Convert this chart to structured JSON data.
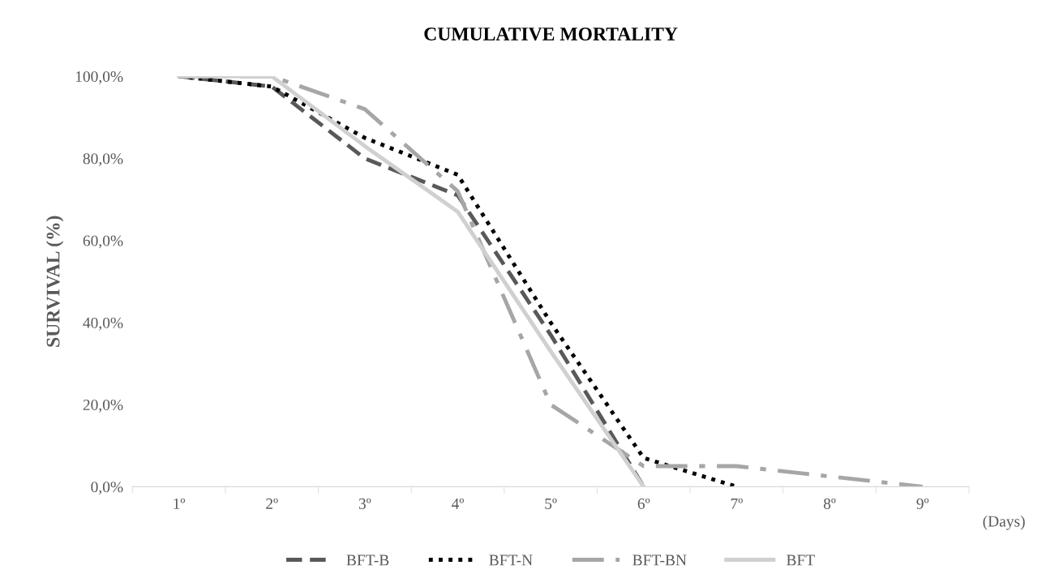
{
  "chart_data": {
    "type": "line",
    "title": "CUMULATIVE MORTALITY",
    "ylabel": "SURVIVAL (%)",
    "xlabel": "(Days)",
    "categories": [
      "1º",
      "2º",
      "3º",
      "4º",
      "5º",
      "6º",
      "7º",
      "8º",
      "9º"
    ],
    "series": [
      {
        "name": "BFT-B",
        "color": "#595959",
        "line_style": "dashed",
        "values": [
          100,
          97.5,
          80,
          71,
          37,
          0,
          null,
          null,
          null
        ]
      },
      {
        "name": "BFT-N",
        "color": "#000000",
        "line_style": "dotted",
        "values": [
          100,
          97.5,
          85,
          76,
          40,
          7,
          0,
          null,
          null
        ]
      },
      {
        "name": "BFT-BN",
        "color": "#a6a6a6",
        "line_style": "dashdot",
        "values": [
          100,
          100,
          92,
          72,
          20,
          5,
          5,
          2.5,
          0
        ]
      },
      {
        "name": "BFT",
        "color": "#d0d0d0",
        "line_style": "solid",
        "values": [
          100,
          100,
          83,
          67,
          33,
          0,
          null,
          null,
          null
        ]
      }
    ],
    "ylim": [
      0,
      100
    ],
    "yticks": [
      {
        "value": 0,
        "label": "0,0%"
      },
      {
        "value": 20,
        "label": "20,0%"
      },
      {
        "value": 40,
        "label": "40,0%"
      },
      {
        "value": 60,
        "label": "60,0%"
      },
      {
        "value": 80,
        "label": "80,0%"
      },
      {
        "value": 100,
        "label": "100,0%"
      }
    ],
    "grid": false,
    "legend": "bottom",
    "marker": "none"
  }
}
